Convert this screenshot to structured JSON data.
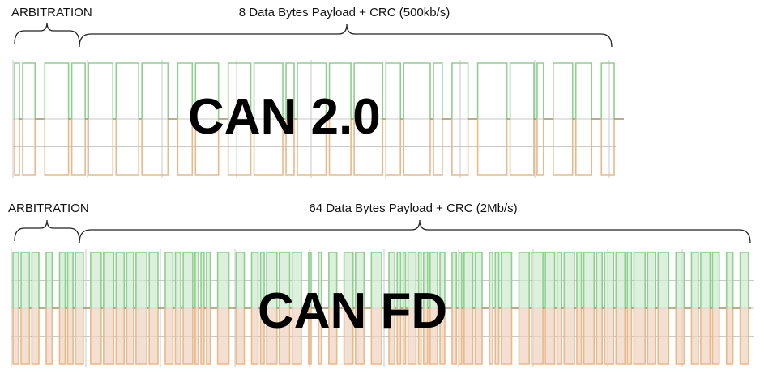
{
  "panels": [
    {
      "arbitration_label": "ARBITRATION",
      "payload_label": "8 Data Bytes Payload + CRC (500kb/s)",
      "protocol": "CAN 2.0"
    },
    {
      "arbitration_label": "ARBITRATION",
      "payload_label": "64 Data Bytes Payload + CRC (2Mb/s)",
      "protocol": "CAN FD"
    }
  ]
}
